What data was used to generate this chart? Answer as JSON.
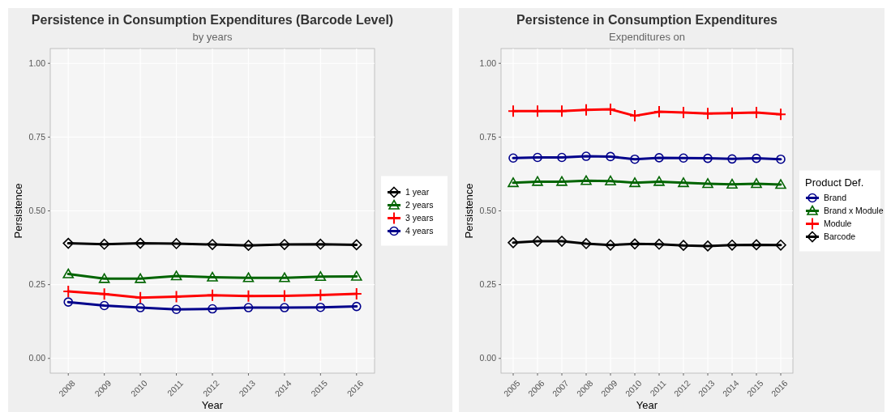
{
  "chart_data": [
    {
      "type": "line",
      "title": "Persistence in Consumption Expenditures (Barcode Level)",
      "subtitle": "by years",
      "xlabel": "Year",
      "ylabel": "Persistence",
      "categories": [
        "2008",
        "2009",
        "2010",
        "2011",
        "2012",
        "2013",
        "2014",
        "2015",
        "2016"
      ],
      "ylim": [
        -0.05,
        1.05
      ],
      "yticks": [
        {
          "value": 0,
          "label": "0.00"
        },
        {
          "value": 0.25,
          "label": "0.25"
        },
        {
          "value": 0.5,
          "label": "0.50"
        },
        {
          "value": 0.75,
          "label": "0.75"
        },
        {
          "value": 1,
          "label": "1.00"
        }
      ],
      "grid": true,
      "legend": "right",
      "series": [
        {
          "name": "1 year",
          "color": "#000000",
          "marker": "diamond",
          "values": [
            0.39,
            0.387,
            0.39,
            0.389,
            0.386,
            0.383,
            0.386,
            0.387,
            0.385
          ]
        },
        {
          "name": "2 years",
          "color": "#006400",
          "marker": "triangle",
          "values": [
            0.286,
            0.27,
            0.27,
            0.279,
            0.275,
            0.273,
            0.273,
            0.277,
            0.278
          ]
        },
        {
          "name": "3 years",
          "color": "#ff0000",
          "marker": "cross",
          "values": [
            0.227,
            0.218,
            0.206,
            0.209,
            0.214,
            0.211,
            0.212,
            0.215,
            0.219
          ]
        },
        {
          "name": "4 years",
          "color": "#00008b",
          "marker": "circle",
          "values": [
            0.191,
            0.179,
            0.172,
            0.166,
            0.168,
            0.172,
            0.172,
            0.173,
            0.176
          ]
        }
      ]
    },
    {
      "type": "line",
      "title": "Persistence in Consumption Expenditures",
      "subtitle": "Expenditures on",
      "xlabel": "Year",
      "ylabel": "Persistence",
      "legend_title": "Product Def.",
      "categories": [
        "2005",
        "2006",
        "2007",
        "2008",
        "2009",
        "2010",
        "2011",
        "2012",
        "2013",
        "2014",
        "2015",
        "2016"
      ],
      "ylim": [
        -0.05,
        1.05
      ],
      "yticks": [
        {
          "value": 0,
          "label": "0.00"
        },
        {
          "value": 0.25,
          "label": "0.25"
        },
        {
          "value": 0.5,
          "label": "0.50"
        },
        {
          "value": 0.75,
          "label": "0.75"
        },
        {
          "value": 1,
          "label": "1.00"
        }
      ],
      "grid": true,
      "legend": "right",
      "series": [
        {
          "name": "Brand",
          "color": "#00008b",
          "marker": "circle",
          "values": [
            0.679,
            0.681,
            0.681,
            0.685,
            0.684,
            0.675,
            0.68,
            0.679,
            0.678,
            0.676,
            0.678,
            0.675
          ]
        },
        {
          "name": "Brand x Module",
          "color": "#006400",
          "marker": "triangle",
          "values": [
            0.595,
            0.599,
            0.599,
            0.602,
            0.601,
            0.595,
            0.599,
            0.595,
            0.592,
            0.59,
            0.592,
            0.589
          ]
        },
        {
          "name": "Module",
          "color": "#ff0000",
          "marker": "cross",
          "values": [
            0.838,
            0.838,
            0.838,
            0.842,
            0.844,
            0.822,
            0.836,
            0.833,
            0.83,
            0.831,
            0.833,
            0.827
          ]
        },
        {
          "name": "Barcode",
          "color": "#000000",
          "marker": "diamond",
          "values": [
            0.392,
            0.397,
            0.397,
            0.389,
            0.384,
            0.388,
            0.387,
            0.383,
            0.381,
            0.384,
            0.385,
            0.384
          ]
        }
      ]
    }
  ]
}
